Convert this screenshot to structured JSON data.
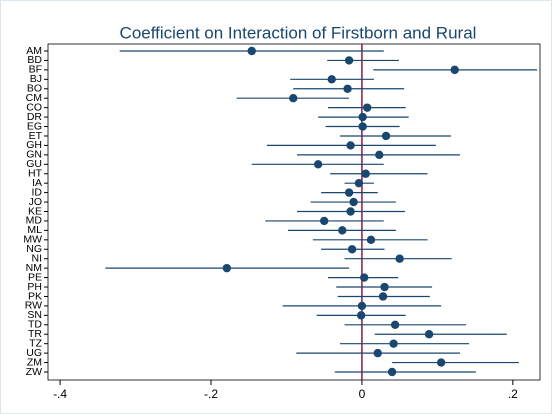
{
  "chart_data": {
    "type": "coefplot",
    "title": "Coefficient on Interaction of Firstborn and Rural",
    "categories": [
      "AM",
      "BD",
      "BF",
      "BJ",
      "BO",
      "CM",
      "CO",
      "DR",
      "EG",
      "ET",
      "GH",
      "GN",
      "GU",
      "HT",
      "IA",
      "ID",
      "JO",
      "KE",
      "MD",
      "ML",
      "MW",
      "NG",
      "NI",
      "NM",
      "PE",
      "PH",
      "PK",
      "RW",
      "SN",
      "TD",
      "TR",
      "TZ",
      "UG",
      "ZM",
      "ZW"
    ],
    "series": [
      {
        "color": "#1a476f",
        "values": [
          -0.146,
          -0.017,
          0.123,
          -0.04,
          -0.019,
          -0.091,
          0.007,
          0.001,
          0.001,
          0.032,
          -0.015,
          0.023,
          -0.058,
          0.005,
          -0.004,
          -0.017,
          -0.011,
          -0.015,
          -0.05,
          -0.026,
          0.012,
          -0.013,
          0.05,
          -0.179,
          0.003,
          0.03,
          0.028,
          0.0,
          -0.001,
          0.044,
          0.089,
          0.042,
          0.021,
          0.105,
          0.04
        ],
        "lower": [
          -0.321,
          -0.046,
          0.015,
          -0.095,
          -0.091,
          -0.166,
          -0.045,
          -0.058,
          -0.048,
          -0.029,
          -0.126,
          -0.086,
          -0.146,
          -0.042,
          -0.023,
          -0.054,
          -0.068,
          -0.086,
          -0.128,
          -0.098,
          -0.065,
          -0.054,
          -0.023,
          -0.34,
          -0.045,
          -0.034,
          -0.032,
          -0.105,
          -0.06,
          -0.023,
          0.017,
          -0.029,
          -0.087,
          0.04,
          -0.036
        ],
        "upper": [
          0.029,
          0.049,
          0.232,
          0.016,
          0.056,
          -0.017,
          0.058,
          0.062,
          0.05,
          0.118,
          0.098,
          0.13,
          0.029,
          0.087,
          0.016,
          0.021,
          0.045,
          0.057,
          0.029,
          0.045,
          0.087,
          0.03,
          0.119,
          -0.017,
          0.048,
          0.093,
          0.09,
          0.105,
          0.058,
          0.138,
          0.192,
          0.142,
          0.13,
          0.208,
          0.151
        ]
      }
    ],
    "xlim": [
      -0.416,
      0.236
    ],
    "xticks": [
      {
        "value": -0.4,
        "label": "-.4"
      },
      {
        "value": -0.2,
        "label": "-.2"
      },
      0,
      {
        "value": 0.2,
        "label": ".2"
      }
    ],
    "reference_line": {
      "value": 0,
      "color": "#8b1a4a"
    }
  }
}
